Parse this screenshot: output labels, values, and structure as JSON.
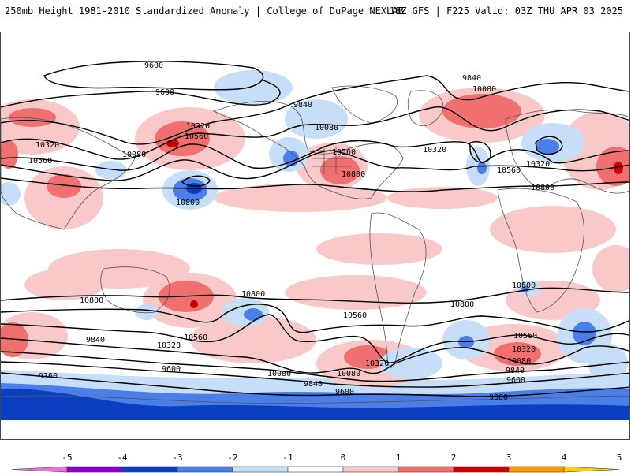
{
  "header": {
    "title": "250mb Height 1981-2010 Standardized Anomaly | College of DuPage NEXLAB",
    "run_info": "18Z GFS | F225 Valid: 03Z THU APR 03 2025"
  },
  "map": {
    "contour_labels": [
      "9600",
      "9600",
      "9840",
      "9840",
      "10080",
      "10080",
      "10320",
      "10320",
      "10560",
      "10560",
      "10800",
      "10560",
      "10800",
      "10080",
      "10320",
      "10560",
      "10320",
      "10800",
      "10560",
      "10800",
      "10800",
      "10800",
      "10560",
      "10320",
      "9840",
      "10080",
      "9600",
      "9360",
      "9840",
      "9600",
      "10080",
      "10320",
      "10560",
      "10800",
      "10560",
      "10320",
      "10080",
      "9840",
      "9600",
      "9360"
    ],
    "colors": {
      "anom_pos_1": "#f9c9c9",
      "anom_pos_2": "#f07070",
      "anom_pos_3": "#c80000",
      "anom_neg_1": "#c6def7",
      "anom_neg_2": "#4a7ee8",
      "anom_neg_3": "#0a3fc0",
      "coast": "#555555",
      "contour": "#000000"
    }
  },
  "colorbar": {
    "ticks": [
      "-5",
      "-4",
      "-3",
      "-2",
      "-1",
      "0",
      "1",
      "2",
      "3",
      "4",
      "5"
    ],
    "colors": [
      "#e870e0",
      "#8a00c8",
      "#0a3fc0",
      "#4a7ee8",
      "#c6def7",
      "#ffffff",
      "#f9c9c9",
      "#f07070",
      "#c80000",
      "#ff9a00",
      "#ffd000"
    ]
  }
}
